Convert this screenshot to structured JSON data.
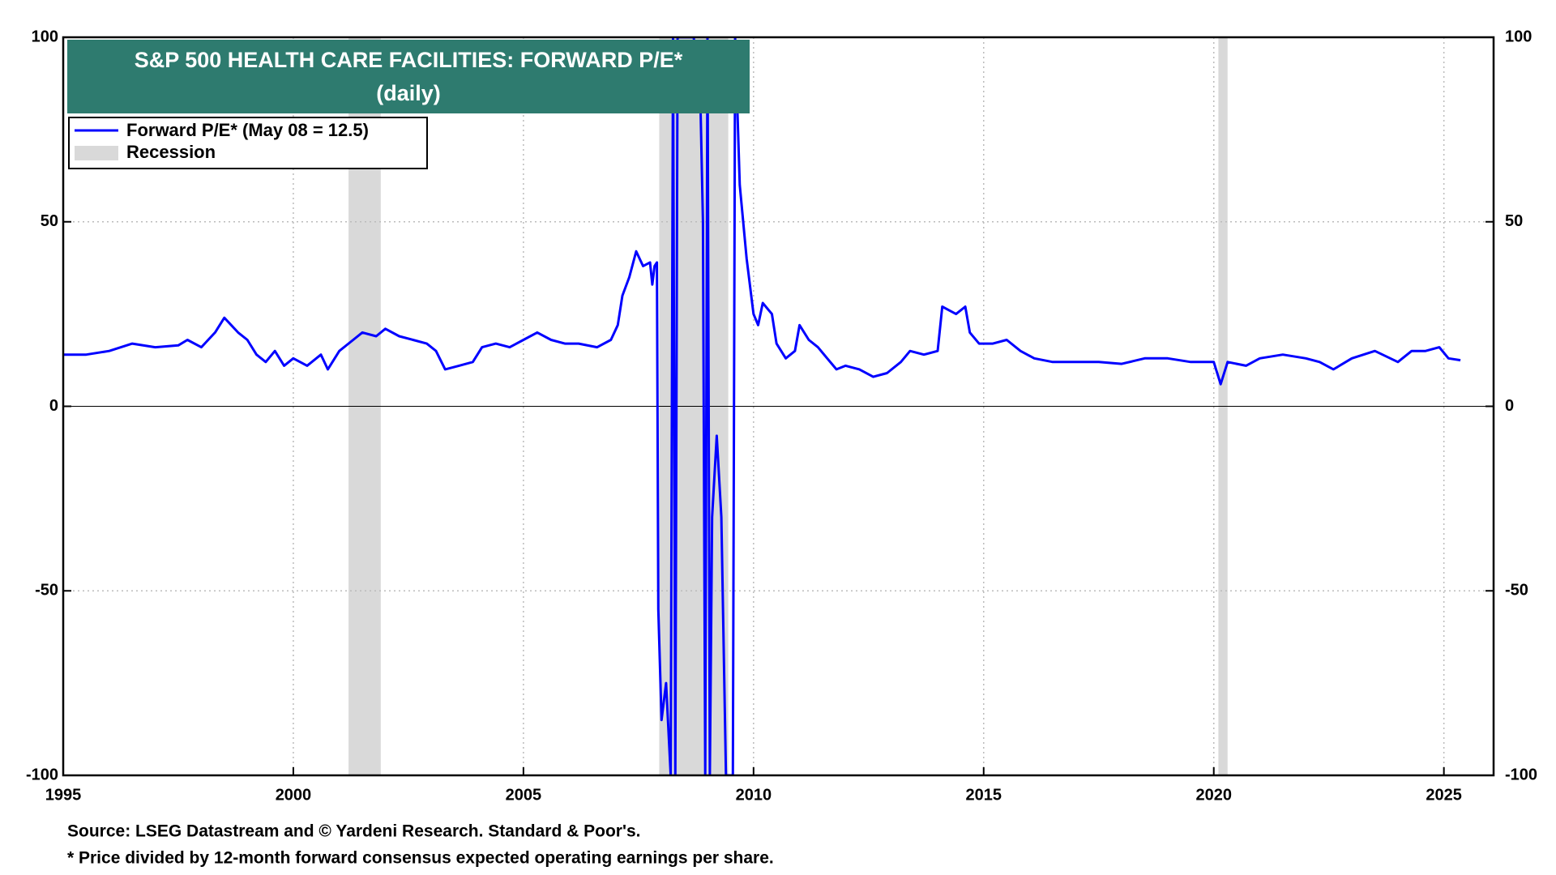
{
  "chart_data": {
    "type": "line",
    "title": "S&P 500 HEALTH CARE FACILITIES: FORWARD P/E*",
    "subtitle": "(daily)",
    "notes": [
      "Source: LSEG Datastream and © Yardeni Research. Standard & Poor's.",
      "* Price divided by 12-month forward consensus expected operating earnings per share."
    ],
    "title_color": "#2e7b6f",
    "recession_label": "Recession",
    "recession_color": "#d9d9d9",
    "recessions": [
      [
        2001.2,
        2001.9
      ],
      [
        2007.95,
        2009.45
      ],
      [
        2020.1,
        2020.3
      ]
    ],
    "x": [
      1995.0,
      1995.5,
      1996.0,
      1996.5,
      1997.0,
      1997.5,
      1997.7,
      1998.0,
      1998.3,
      1998.5,
      1998.8,
      1999.0,
      1999.2,
      1999.4,
      1999.6,
      1999.8,
      2000.0,
      2000.3,
      2000.6,
      2000.75,
      2001.0,
      2001.3,
      2001.5,
      2001.8,
      2002.0,
      2002.3,
      2002.6,
      2002.9,
      2003.1,
      2003.3,
      2003.6,
      2003.9,
      2004.1,
      2004.4,
      2004.7,
      2005.0,
      2005.3,
      2005.6,
      2005.9,
      2006.2,
      2006.6,
      2006.9,
      2007.05,
      2007.15,
      2007.3,
      2007.45,
      2007.6,
      2007.75,
      2007.8,
      2007.85,
      2007.9,
      2007.93,
      2008.0,
      2008.1,
      2008.2,
      2008.25,
      2008.3,
      2008.35,
      2008.7,
      2008.85,
      2008.9,
      2008.95,
      2009.0,
      2009.05,
      2009.1,
      2009.2,
      2009.3,
      2009.4,
      2009.55,
      2009.6,
      2009.7,
      2009.85,
      2010.0,
      2010.1,
      2010.2,
      2010.4,
      2010.5,
      2010.7,
      2010.9,
      2011.0,
      2011.2,
      2011.4,
      2011.6,
      2011.8,
      2012.0,
      2012.3,
      2012.6,
      2012.9,
      2013.2,
      2013.4,
      2013.7,
      2014.0,
      2014.1,
      2014.4,
      2014.6,
      2014.7,
      2014.9,
      2015.2,
      2015.5,
      2015.8,
      2016.1,
      2016.5,
      2017.0,
      2017.5,
      2018.0,
      2018.5,
      2019.0,
      2019.5,
      2020.0,
      2020.15,
      2020.3,
      2020.7,
      2021.0,
      2021.5,
      2022.0,
      2022.3,
      2022.6,
      2023.0,
      2023.5,
      2024.0,
      2024.3,
      2024.6,
      2024.9,
      2025.1,
      2025.36
    ],
    "series": [
      {
        "name": "Forward P/E* (May 08 = 12.5)",
        "color": "#0000ff",
        "values": [
          14,
          14,
          15,
          17,
          16,
          16.5,
          18,
          16,
          20,
          24,
          20,
          18,
          14,
          12,
          15,
          11,
          13,
          11,
          14,
          10,
          15,
          18,
          20,
          19,
          21,
          19,
          18,
          17,
          15,
          10,
          11,
          12,
          16,
          17,
          16,
          18,
          20,
          18,
          17,
          17,
          16,
          18,
          22,
          30,
          35,
          42,
          38,
          39,
          33,
          38,
          39,
          -55,
          -85,
          -75,
          -100,
          100,
          -100,
          100,
          100,
          80,
          50,
          -100,
          100,
          -100,
          -30,
          -8,
          -30,
          -100,
          -100,
          100,
          60,
          40,
          25,
          22,
          28,
          25,
          17,
          13,
          15,
          22,
          18,
          16,
          13,
          10,
          11,
          10,
          8,
          9,
          12,
          15,
          14,
          15,
          27,
          25,
          27,
          20,
          17,
          17,
          18,
          15,
          13,
          12,
          12,
          12,
          11.5,
          13,
          13,
          12,
          12,
          6,
          12,
          11,
          13,
          14,
          13,
          12,
          10,
          13,
          15,
          12,
          15,
          15,
          16,
          13,
          12.5
        ]
      }
    ],
    "xlim": [
      1995,
      2026.08
    ],
    "xticks": [
      1995,
      2000,
      2005,
      2010,
      2015,
      2020,
      2025
    ],
    "ylim": [
      -100,
      100
    ],
    "yticks": [
      -100,
      -50,
      0,
      50,
      100
    ],
    "y2lim": [
      -100,
      100
    ],
    "y2ticks": [
      -100,
      -50,
      0,
      50,
      100
    ],
    "grid": true
  }
}
